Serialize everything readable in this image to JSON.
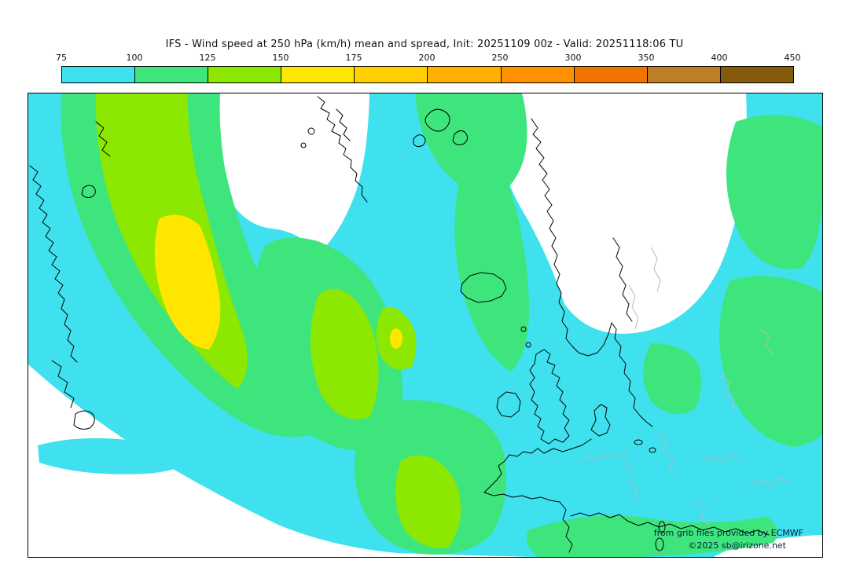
{
  "header": {
    "title": "IFS - Wind speed at 250 hPa (km/h) mean and spread, Init: 20251109 00z - Valid: 20251118:06 TU"
  },
  "colorbar": {
    "ticks": [
      "75",
      "100",
      "125",
      "150",
      "175",
      "200",
      "250",
      "300",
      "350",
      "400",
      "450"
    ],
    "segments": [
      {
        "from": "75",
        "to": "100",
        "color": "#3fe1ee"
      },
      {
        "from": "100",
        "to": "125",
        "color": "#3ee57d"
      },
      {
        "from": "125",
        "to": "150",
        "color": "#8ce800"
      },
      {
        "from": "150",
        "to": "175",
        "color": "#ffe600"
      },
      {
        "from": "175",
        "to": "200",
        "color": "#ffcf00"
      },
      {
        "from": "200",
        "to": "250",
        "color": "#ffb000"
      },
      {
        "from": "250",
        "to": "300",
        "color": "#ff9000"
      },
      {
        "from": "300",
        "to": "350",
        "color": "#f17300"
      },
      {
        "from": "350",
        "to": "400",
        "color": "#bf7d26"
      },
      {
        "from": "400",
        "to": "450",
        "color": "#845a0b"
      }
    ]
  },
  "map": {
    "colors": {
      "below_scale": "#ffffff",
      "cyan": "#3fe1ee",
      "green": "#3ee57d",
      "chartreuse": "#8ce800",
      "yellow": "#ffe600",
      "coastline": "#000000",
      "border": "#b9b9b9"
    },
    "attribution_line1": "from grib files provided by ECMWF",
    "attribution_line2": "©2025 sb@irizone.net"
  },
  "chart_data": {
    "type": "heatmap",
    "title": "IFS - Wind speed at 250 hPa (km/h) mean and spread",
    "init": "20251109 00z",
    "valid": "20251118:06 TU",
    "levels_kmh": [
      75,
      100,
      125,
      150,
      175,
      200,
      250,
      300,
      350,
      400,
      450
    ],
    "legend_position": "top",
    "fill_meaning": "wind speed shading: white < 75, cyan 75-100, green 100-125, chartreuse 125-150, yellow 150-175 km/h"
  }
}
